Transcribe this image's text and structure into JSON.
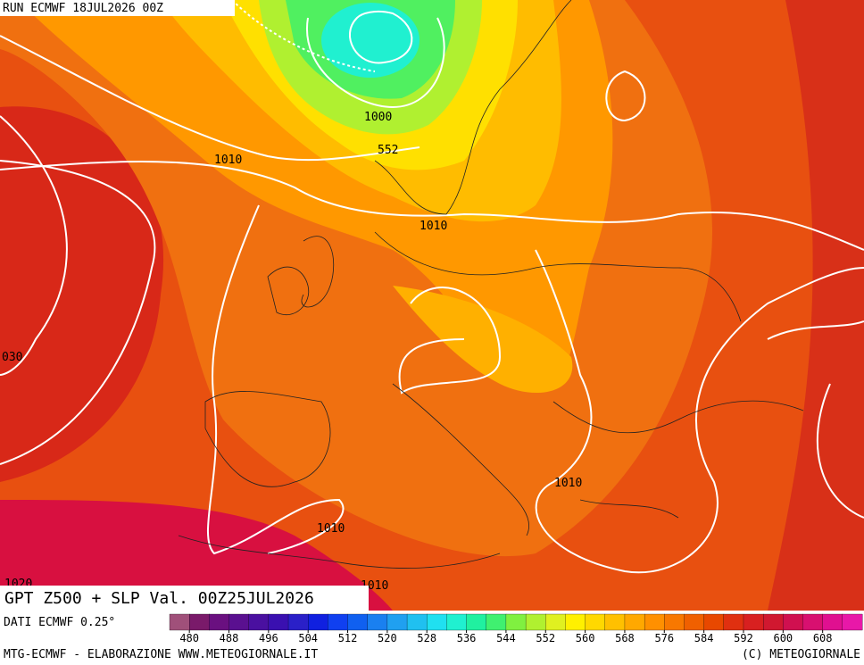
{
  "header": {
    "run": "RUN ECMWF 18JUL2026 00Z"
  },
  "map": {
    "title": "GPT Z500 + SLP Val. 00Z25JUL2026",
    "contour_labels": [
      "1000",
      "552",
      "1010",
      "1010",
      "1010",
      "1010",
      "030",
      "1020",
      "1010"
    ]
  },
  "footer": {
    "source": "DATI ECMWF 0.25°",
    "credit": "MTG-ECMWF - ELABORAZIONE WWW.METEOGIORNALE.IT",
    "copyright": "(C) METEOGIORNALE"
  },
  "colorbar": {
    "lim": [
      476,
      616
    ],
    "ticks": [
      480,
      488,
      496,
      504,
      512,
      520,
      528,
      536,
      544,
      552,
      560,
      568,
      576,
      584,
      592,
      600,
      608
    ],
    "colors": [
      "#a0507a",
      "#7a1a6a",
      "#6a1080",
      "#5a1090",
      "#4a10a0",
      "#3a10b0",
      "#2a20c8",
      "#1020e0",
      "#1040f0",
      "#1060f0",
      "#1a80f0",
      "#20a0f0",
      "#20c0f0",
      "#20e0f0",
      "#20f0d0",
      "#20f0a0",
      "#40f070",
      "#80f040",
      "#b0f030",
      "#e0f020",
      "#fff000",
      "#ffd800",
      "#ffc000",
      "#ffa800",
      "#ff9000",
      "#f87800",
      "#f06000",
      "#e84800",
      "#e03010",
      "#d82020",
      "#d01830",
      "#d01050",
      "#d81070",
      "#e01090",
      "#e818a8"
    ]
  }
}
